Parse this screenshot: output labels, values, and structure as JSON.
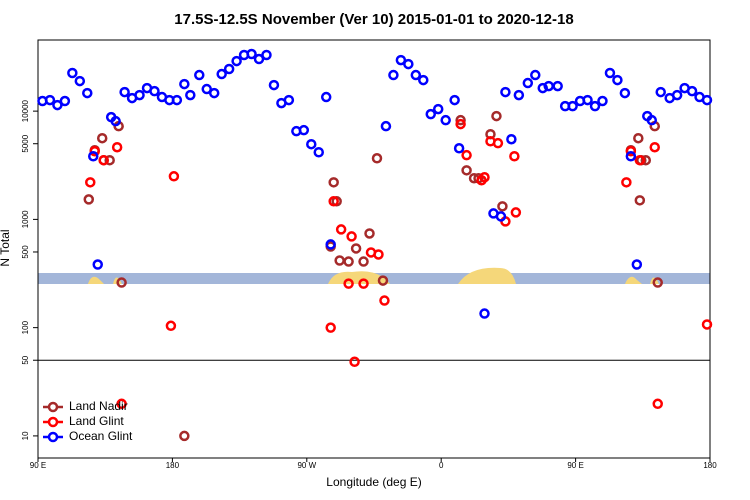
{
  "chart_data": {
    "type": "scatter",
    "title": "17.5S-12.5S November (Ver 10)   2015-01-01 to 2020-12-18",
    "x_label": "Longitude (deg E)",
    "y_label": "N Total",
    "xlim": [
      90,
      540
    ],
    "xticks": [
      {
        "value": 90,
        "label": "90 E"
      },
      180,
      {
        "value": 270,
        "label": "90 W"
      },
      {
        "value": 360,
        "label": "0"
      },
      {
        "value": 450,
        "label": "90 E"
      },
      {
        "value": 540,
        "label": "180"
      }
    ],
    "ylim": [
      6.25,
      45400
    ],
    "log_y": true,
    "yticks": [
      10,
      50,
      100,
      500,
      1000,
      5000,
      10000
    ],
    "reference_line": 50,
    "legend": "bottom-left",
    "series": [
      {
        "name": "Land Nadir",
        "color": "#a52a2a",
        "x": [
          124,
          128,
          133,
          134,
          138,
          144,
          146,
          188,
          286,
          288,
          290,
          292,
          298,
          303,
          308,
          312,
          317,
          321,
          373,
          377,
          382,
          385,
          393,
          397,
          401,
          487,
          492,
          493,
          494,
          497,
          503,
          505
        ],
        "values": [
          1530,
          4350,
          5620,
          3520,
          3520,
          7260,
          261,
          10,
          562,
          2200,
          1470,
          417,
          408,
          539,
          408,
          741,
          3670,
          272,
          8250,
          2840,
          2400,
          2400,
          6120,
          9000,
          1320,
          4350,
          5620,
          1500,
          3520,
          3520,
          7260,
          261
        ]
      },
      {
        "name": "Land Glint",
        "color": "#ff0000",
        "x": [
          125,
          128,
          134,
          143,
          146,
          179,
          181,
          286,
          288,
          293,
          298,
          300,
          302,
          308,
          313,
          318,
          322,
          373,
          377,
          387,
          389,
          393,
          398,
          403,
          409,
          410,
          484,
          487,
          493,
          503,
          505,
          538
        ],
        "values": [
          2200,
          4260,
          3520,
          4640,
          19.8,
          104,
          2500,
          100,
          1470,
          808,
          255,
          696,
          48.4,
          255,
          495,
          474,
          178,
          7590,
          3920,
          2300,
          2450,
          5270,
          5060,
          958,
          3830,
          1160,
          2200,
          4260,
          3520,
          4640,
          19.8,
          107
        ]
      },
      {
        "name": "Ocean Glint",
        "color": "#0000ff",
        "x": [
          93,
          98,
          103,
          108,
          113,
          118,
          123,
          127,
          130,
          139,
          142,
          148,
          153,
          158,
          163,
          168,
          173,
          178,
          183,
          188,
          192,
          198,
          203,
          208,
          213,
          218,
          223,
          228,
          233,
          238,
          243,
          248,
          253,
          258,
          263,
          268,
          273,
          278,
          283,
          286,
          323,
          328,
          333,
          338,
          343,
          348,
          353,
          358,
          363,
          369,
          372,
          389,
          395,
          400,
          403,
          407,
          412,
          418,
          423,
          428,
          432,
          438,
          443,
          448,
          453,
          458,
          463,
          468,
          473,
          478,
          483,
          487,
          491,
          498,
          501,
          507,
          513,
          518,
          523,
          528,
          533,
          538
        ],
        "values": [
          12400,
          12650,
          11370,
          12400,
          22500,
          18950,
          14680,
          3830,
          383,
          8800,
          8080,
          15000,
          13200,
          14060,
          16330,
          15300,
          13490,
          12650,
          12650,
          17780,
          14060,
          21540,
          16000,
          14680,
          22000,
          24500,
          29000,
          33000,
          33700,
          30300,
          33000,
          17400,
          11860,
          12650,
          6530,
          6670,
          4950,
          4170,
          13490,
          587,
          7260,
          21540,
          29600,
          27200,
          21540,
          19360,
          9380,
          10440,
          8250,
          12650,
          4540,
          135,
          1135,
          1065,
          15000,
          5500,
          14060,
          18170,
          21540,
          16330,
          17030,
          17030,
          11120,
          11120,
          12400,
          12650,
          11120,
          12400,
          22500,
          19360,
          14680,
          3830,
          383,
          9000,
          8250,
          15000,
          13200,
          14060,
          16330,
          15300,
          13490,
          12650
        ]
      }
    ]
  }
}
